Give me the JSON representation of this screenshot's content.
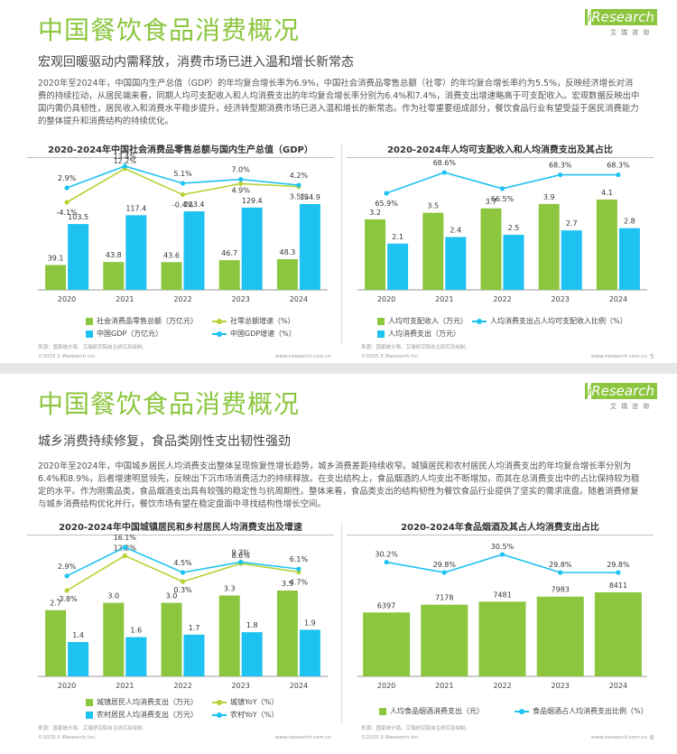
{
  "slides": [
    {
      "title": "中国餐饮食品消费概况",
      "subtitle": "宏观回暖驱动内需释放，消费市场已进入温和增长新常态",
      "body": "2020年至2024年，中国国内生产总值（GDP）的年均复合增长率为6.9%，中国社会消费品零售总额（社零）的年均复合增长率约为5.5%，反映经济增长对消费的持续拉动，从居民端来看，同期人均可支配收入和人均消费支出的年均复合增长率分别为6.4%和7.4%，消费支出增速略高于可支配收入。宏观数据反映出中国内需仍具韧性，居民收入和消费水平稳步提升，经济转型期消费市场已进入温和增长的新常态。作为社零重要组成部分，餐饮食品行业有望受益于居民消费能力的整体提升和消费结构的持续优化。",
      "logo": {
        "brand_i": "i",
        "brand": "Research",
        "sub": "艾瑞咨询"
      },
      "source_left": "来源：国家统计局、艾瑞研究院自主研究及绘制。",
      "source_right": "来源：国家统计局、艾瑞研究院自主研究及绘制。",
      "copyright_left": "©2025.3 iResearch Inc.",
      "url_left": "www.iresearch.com.cn",
      "copyright_right": "©2025.3 iResearch Inc.",
      "url_right": "www.iresearch.com.cn",
      "page": "5"
    },
    {
      "title": "中国餐饮食品消费概况",
      "subtitle": "城乡消费持续修复，食品类刚性支出韧性强劲",
      "body": "2020年至2024年，中国城乡居民人均消费支出整体呈现恢复性增长趋势，城乡消费差距持续收窄。城镇居民和农村居民人均消费支出的年均复合增长率分别为6.4%和8.9%，后者增速明显领先，反映出下沉市场消费活力的持续释放。在支出结构上，食品烟酒的人均支出不断增加，而其在总消费支出中的占比保持较为稳定的水平。作为刚需品类，食品烟酒支出具有较强的稳定性与抗周期性。整体来看，食品类支出的结构韧性为餐饮食品行业提供了坚实的需求底盘。随着消费修复与城乡消费结构优化并行，餐饮市场有望在稳定盘面中寻找结构性增长空间。",
      "logo": {
        "brand_i": "i",
        "brand": "Research",
        "sub": "艾瑞咨询"
      },
      "source_left": "来源：国家统计局、艾瑞研究院自主研究及绘制。",
      "source_right": "来源：国家统计局、艾瑞研究院自主研究及绘制。",
      "copyright_left": "©2025.3 iResearch Inc.",
      "url_left": "www.iresearch.com.cn",
      "copyright_right": "©2025.3 iResearch Inc.",
      "url_right": "www.iresearch.com.cn",
      "page": "6"
    }
  ],
  "colors": {
    "green": "#8cc63f",
    "blue": "#1ec2f0",
    "title_green": "#8cc63f"
  },
  "chart_data": [
    {
      "type": "bar",
      "title": "2020-2024年中国社会消费品零售总额与国内生产总值（GDP）",
      "categories": [
        "2020",
        "2021",
        "2022",
        "2023",
        "2024"
      ],
      "series": [
        {
          "name": "社会消费品零售总额（万亿元）",
          "type": "bar",
          "color": "#8cc63f",
          "values": [
            39.1,
            43.8,
            43.6,
            46.7,
            48.3
          ],
          "labels": [
            "39.1",
            "43.8",
            "43.6",
            "46.7",
            "48.3"
          ]
        },
        {
          "name": "中国GDP（万亿元）",
          "type": "bar",
          "color": "#1ec2f0",
          "values": [
            103.5,
            117.4,
            123.4,
            129.4,
            134.9
          ],
          "labels": [
            "103.5",
            "117.4",
            "123.4",
            "129.4",
            "134.9"
          ]
        },
        {
          "name": "社零总额增速（%）",
          "type": "line",
          "color": "#b5d334",
          "values": [
            -4.1,
            12.2,
            -0.4,
            4.9,
            3.5
          ],
          "labels": [
            "-4.1%",
            "12.2%",
            "-0.4%",
            "4.9%",
            "3.5%"
          ]
        },
        {
          "name": "中国GDP增速（%）",
          "type": "line",
          "color": "#1ec2f0",
          "values": [
            2.9,
            13.4,
            5.1,
            7.0,
            4.2
          ],
          "labels": [
            "2.9%",
            "13.4%",
            "5.1%",
            "7.0%",
            "4.2%"
          ]
        }
      ],
      "legend": [
        "社会消费品零售总额（万亿元）",
        "社零总额增速（%）",
        "中国GDP（万亿元）",
        "中国GDP增速（%）"
      ]
    },
    {
      "type": "bar",
      "title": "2020-2024年人均可支配收入和人均消费支出及其占比",
      "categories": [
        "2020",
        "2021",
        "2022",
        "2023",
        "2024"
      ],
      "series": [
        {
          "name": "人均可支配收入（万元）",
          "type": "bar",
          "color": "#8cc63f",
          "values": [
            3.2,
            3.5,
            3.7,
            3.9,
            4.1
          ],
          "labels": [
            "3.2",
            "3.5",
            "3.7",
            "3.9",
            "4.1"
          ]
        },
        {
          "name": "人均消费支出（万元）",
          "type": "bar",
          "color": "#1ec2f0",
          "values": [
            2.1,
            2.4,
            2.5,
            2.7,
            2.8
          ],
          "labels": [
            "2.1",
            "2.4",
            "2.5",
            "2.7",
            "2.8"
          ]
        },
        {
          "name": "人均消费支出占人均可支配收入比例（%）",
          "type": "line",
          "color": "#1ec2f0",
          "values": [
            65.9,
            68.6,
            66.5,
            68.3,
            68.3
          ],
          "labels": [
            "65.9%",
            "68.6%",
            "66.5%",
            "68.3%",
            "68.3%"
          ]
        }
      ],
      "legend": [
        "人均可支配收入（万元）",
        "人均消费支出占人均可支配收入比例（%）",
        "人均消费支出（万元）"
      ]
    },
    {
      "type": "bar",
      "title": "2020-2024年中国城镇居民和乡村居民人均消费支出及增速",
      "categories": [
        "2020",
        "2021",
        "2022",
        "2023",
        "2024"
      ],
      "series": [
        {
          "name": "城镇居民人均消费支出（万元）",
          "type": "bar",
          "color": "#8cc63f",
          "values": [
            2.7,
            3.0,
            3.0,
            3.3,
            3.5
          ],
          "labels": [
            "2.7",
            "3.0",
            "3.0",
            "3.3",
            "3.5"
          ]
        },
        {
          "name": "农村居民人均消费支出（万元）",
          "type": "bar",
          "color": "#1ec2f0",
          "values": [
            1.4,
            1.6,
            1.7,
            1.8,
            1.9
          ],
          "labels": [
            "1.4",
            "1.6",
            "1.7",
            "1.8",
            "1.9"
          ]
        },
        {
          "name": "城镇YoY（%）",
          "type": "line",
          "color": "#b5d334",
          "values": [
            -3.8,
            12.2,
            0.3,
            8.6,
            4.7
          ],
          "labels": [
            "-3.8%",
            "12.2%",
            "0.3%",
            "8.6%",
            "4.7%"
          ]
        },
        {
          "name": "农村YoY（%）",
          "type": "line",
          "color": "#1ec2f0",
          "values": [
            2.9,
            16.1,
            4.5,
            9.3,
            6.1
          ],
          "labels": [
            "2.9%",
            "16.1%",
            "4.5%",
            "9.3%",
            "6.1%"
          ]
        }
      ],
      "legend": [
        "城镇居民人均消费支出（万元）",
        "城镇YoY（%）",
        "农村居民人均消费支出（万元）",
        "农村YoY（%）"
      ]
    },
    {
      "type": "bar",
      "title": "2020-2024年食品烟酒及其占人均消费支出占比",
      "categories": [
        "2020",
        "2021",
        "2022",
        "2023",
        "2024"
      ],
      "series": [
        {
          "name": "人均食品烟酒消费支出（元）",
          "type": "bar",
          "color": "#8cc63f",
          "values": [
            6397,
            7178,
            7481,
            7983,
            8411
          ],
          "labels": [
            "6397",
            "7178",
            "7481",
            "7983",
            "8411"
          ]
        },
        {
          "name": "食品烟酒占人均消费支出比例（%）",
          "type": "line",
          "color": "#1ec2f0",
          "values": [
            30.2,
            29.8,
            30.5,
            29.8,
            29.8
          ],
          "labels": [
            "30.2%",
            "29.8%",
            "30.5%",
            "29.8%",
            "29.8%"
          ]
        }
      ],
      "legend": [
        "人均食品烟酒消费支出（元）",
        "食品烟酒占人均消费支出比例（%）"
      ]
    }
  ]
}
